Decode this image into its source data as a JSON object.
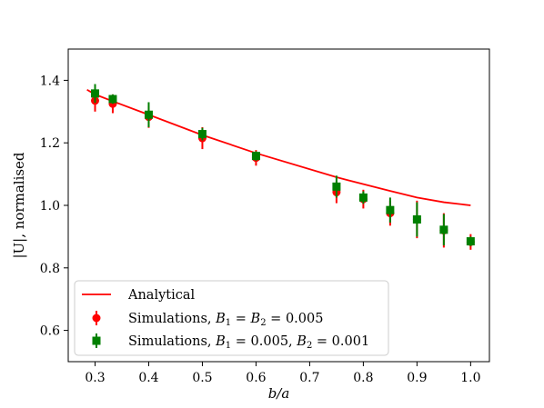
{
  "chart_data": {
    "type": "scatter",
    "xlabel": "b/a",
    "ylabel": "|U|, normalised",
    "xlim": [
      0.25,
      1.035
    ],
    "ylim": [
      0.5,
      1.5
    ],
    "xticks": [
      "0.3",
      "0.4",
      "0.5",
      "0.6",
      "0.7",
      "0.8",
      "0.9",
      "1.0"
    ],
    "yticks": [
      "0.6",
      "0.8",
      "1.0",
      "1.2",
      "1.4"
    ],
    "grid": false,
    "legend_position": "lower-left",
    "series": [
      {
        "name": "Analytical",
        "kind": "line",
        "color": "#ff0000",
        "x": [
          0.285,
          0.3,
          0.333,
          0.4,
          0.5,
          0.6,
          0.75,
          0.8,
          0.85,
          0.9,
          0.95,
          1.0
        ],
        "y": [
          1.37,
          1.355,
          1.333,
          1.29,
          1.225,
          1.167,
          1.09,
          1.068,
          1.046,
          1.025,
          1.01,
          1.0
        ]
      },
      {
        "name": "Simulations, B_1 = B_2 = 0.005",
        "name_parts": [
          "Simulations, ",
          "B",
          "1",
          " = ",
          "B",
          "2",
          " = 0.005"
        ],
        "kind": "errorbar",
        "marker": "circle",
        "color": "#ff0000",
        "x": [
          0.3,
          0.333,
          0.4,
          0.5,
          0.6,
          0.75,
          0.8,
          0.85,
          0.9,
          0.95,
          1.0
        ],
        "y": [
          1.335,
          1.325,
          1.283,
          1.215,
          1.152,
          1.042,
          1.02,
          0.975,
          0.955,
          0.92,
          0.883
        ],
        "err": [
          0.035,
          0.03,
          0.035,
          0.035,
          0.025,
          0.035,
          0.03,
          0.04,
          0.06,
          0.055,
          0.025
        ]
      },
      {
        "name": "Simulations, B_1 = 0.005, B_2 = 0.001",
        "name_parts": [
          "Simulations, ",
          "B",
          "1",
          " = 0.005, ",
          "B",
          "2",
          " = 0.001"
        ],
        "kind": "errorbar",
        "marker": "square",
        "color": "#008000",
        "x": [
          0.3,
          0.333,
          0.4,
          0.5,
          0.6,
          0.75,
          0.8,
          0.85,
          0.9,
          0.95,
          1.0
        ],
        "y": [
          1.358,
          1.34,
          1.29,
          1.228,
          1.158,
          1.06,
          1.025,
          0.985,
          0.955,
          0.922,
          0.885
        ],
        "err": [
          0.03,
          0.015,
          0.04,
          0.02,
          0.015,
          0.035,
          0.02,
          0.04,
          0.055,
          0.05,
          0.015
        ]
      }
    ]
  }
}
